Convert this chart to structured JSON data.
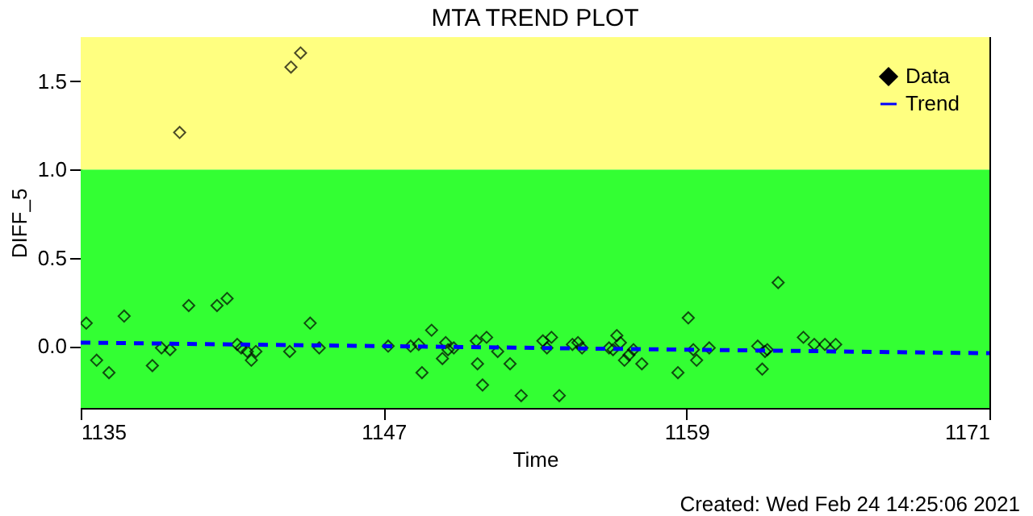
{
  "chart_data": {
    "type": "scatter",
    "title": "MTA TREND PLOT",
    "xlabel": "Time",
    "ylabel": "DIFF_5",
    "annotations": [
      "Created: Wed Feb 24 14:25:06 2021"
    ],
    "xlim": [
      1135,
      1171
    ],
    "xticks": [
      1135,
      1147,
      1159,
      1171
    ],
    "ylim": [
      -0.35,
      1.75
    ],
    "yticks": [
      {
        "value": 0,
        "label": "0.0"
      },
      0.5,
      {
        "value": 1,
        "label": "1.0"
      },
      1.5
    ],
    "bands": [
      {
        "axis": "y",
        "from": -0.35,
        "to": 1.0,
        "color": "#33ff33"
      },
      {
        "axis": "y",
        "from": 1.0,
        "to": 1.75,
        "color": "#ffff80"
      }
    ],
    "legend": "top right",
    "series": [
      {
        "name": "Data",
        "marker": "diamond",
        "color": "#000000",
        "x": [
          1135.22,
          1135.63,
          1136.12,
          1136.72,
          1137.84,
          1138.2,
          1138.54,
          1138.92,
          1139.28,
          1140.4,
          1140.8,
          1141.2,
          1141.36,
          1141.6,
          1141.76,
          1141.94,
          1143.28,
          1143.33,
          1143.71,
          1144.09,
          1144.45,
          1147.18,
          1148.07,
          1148.39,
          1148.52,
          1148.9,
          1149.33,
          1149.46,
          1149.55,
          1149.78,
          1150.67,
          1150.72,
          1150.92,
          1151.08,
          1151.52,
          1152.01,
          1152.45,
          1153.31,
          1153.47,
          1153.65,
          1153.96,
          1154.48,
          1154.7,
          1154.86,
          1155.93,
          1156.09,
          1156.24,
          1156.38,
          1156.54,
          1156.72,
          1156.9,
          1157.23,
          1158.66,
          1159.07,
          1159.27,
          1159.4,
          1159.9,
          1161.82,
          1162.0,
          1162.11,
          1162.2,
          1162.63,
          1163.63,
          1164.06,
          1164.48,
          1164.91
        ],
        "values": [
          0.13,
          -0.08,
          -0.15,
          0.17,
          -0.11,
          -0.01,
          -0.02,
          1.21,
          0.23,
          0.23,
          0.27,
          0.01,
          -0.01,
          -0.03,
          -0.08,
          -0.03,
          -0.03,
          1.58,
          1.66,
          0.13,
          -0.01,
          0.0,
          0.0,
          0.01,
          -0.15,
          0.09,
          -0.07,
          0.02,
          -0.02,
          -0.01,
          0.03,
          -0.1,
          -0.22,
          0.05,
          -0.03,
          -0.1,
          -0.28,
          0.03,
          -0.01,
          0.05,
          -0.28,
          0.01,
          0.02,
          -0.01,
          -0.01,
          -0.02,
          0.06,
          0.02,
          -0.08,
          -0.05,
          -0.02,
          -0.1,
          -0.15,
          0.16,
          -0.02,
          -0.08,
          -0.01,
          0.0,
          -0.13,
          -0.03,
          -0.02,
          0.36,
          0.05,
          0.01,
          0.01,
          0.01
        ]
      },
      {
        "name": "Trend",
        "type": "line",
        "line_style": "dashed",
        "color": "#0000ff",
        "x": [
          1135,
          1171
        ],
        "values": [
          0.02,
          -0.04
        ]
      }
    ]
  }
}
